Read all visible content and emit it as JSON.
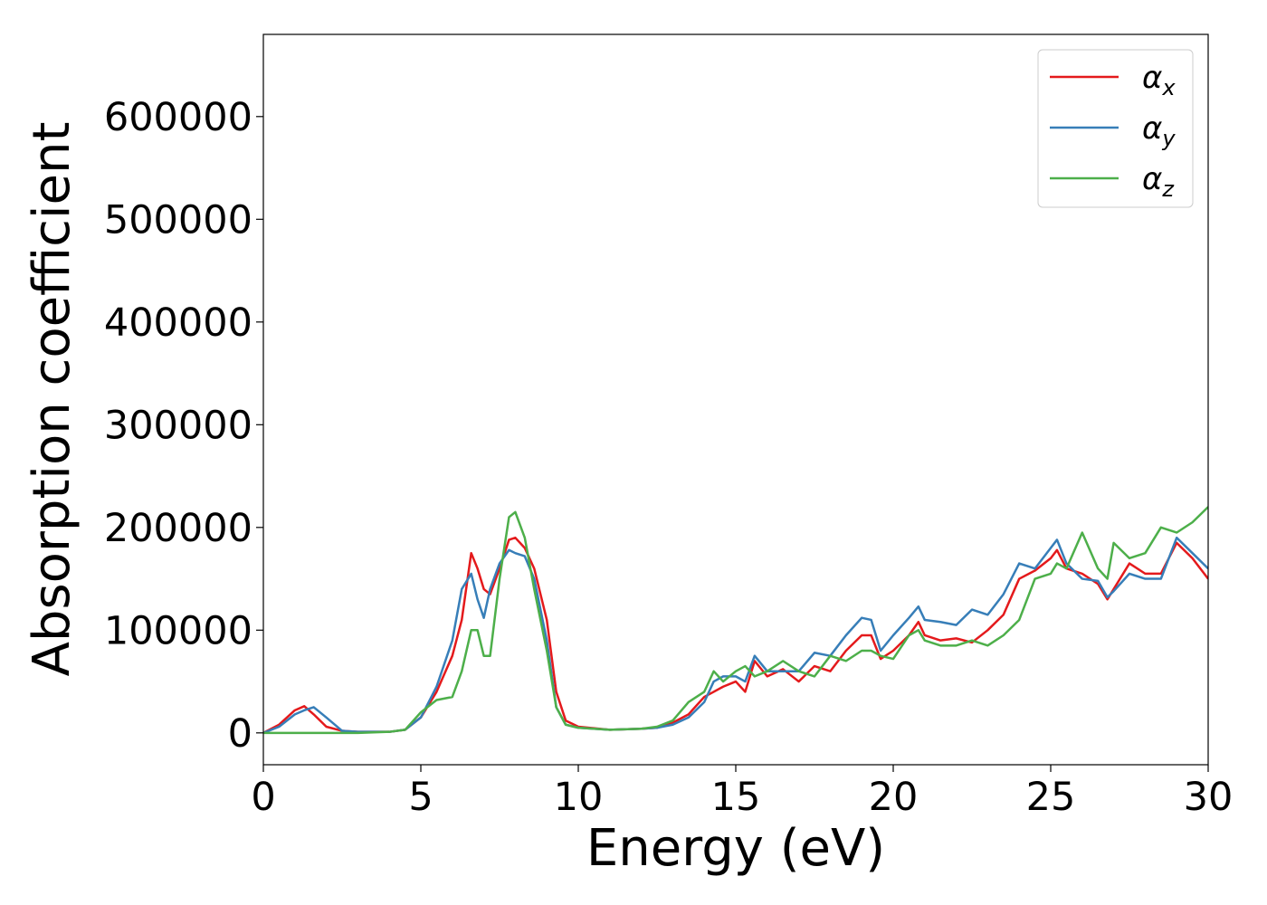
{
  "chart_data": {
    "type": "line",
    "xlabel": "Energy (eV)",
    "ylabel": "Absorption coefficient",
    "x": [
      0,
      0.5,
      1,
      1.3,
      1.6,
      2,
      2.5,
      3,
      4,
      4.5,
      5,
      5.5,
      6,
      6.3,
      6.6,
      6.8,
      7,
      7.2,
      7.5,
      7.8,
      8,
      8.3,
      8.6,
      9,
      9.3,
      9.6,
      10,
      11,
      12,
      12.5,
      13,
      13.5,
      14,
      14.3,
      14.6,
      15,
      15.3,
      15.6,
      16,
      16.5,
      17,
      17.5,
      18,
      18.5,
      19,
      19.3,
      19.6,
      20,
      20.5,
      20.8,
      21,
      21.5,
      22,
      22.5,
      23,
      23.5,
      24,
      24.5,
      25,
      25.2,
      25.5,
      26,
      26.5,
      26.8,
      27,
      27.5,
      28,
      28.5,
      29,
      29.5,
      30
    ],
    "series": [
      {
        "name": "αx",
        "color": "#e41a1c",
        "values": [
          0,
          8000,
          22000,
          26000,
          18000,
          6000,
          2000,
          1000,
          1000,
          3000,
          15000,
          40000,
          75000,
          110000,
          175000,
          160000,
          140000,
          135000,
          160000,
          188000,
          190000,
          180000,
          160000,
          110000,
          40000,
          12000,
          6000,
          3000,
          4000,
          5000,
          10000,
          18000,
          35000,
          40000,
          45000,
          50000,
          40000,
          70000,
          55000,
          62000,
          50000,
          65000,
          60000,
          80000,
          95000,
          95000,
          72000,
          80000,
          95000,
          108000,
          95000,
          90000,
          92000,
          88000,
          100000,
          115000,
          150000,
          158000,
          170000,
          178000,
          160000,
          155000,
          145000,
          130000,
          140000,
          165000,
          155000,
          155000,
          185000,
          170000,
          150000
        ]
      },
      {
        "name": "αy",
        "color": "#377eb8",
        "values": [
          0,
          6000,
          18000,
          22000,
          25000,
          15000,
          2000,
          1000,
          1000,
          3000,
          15000,
          45000,
          90000,
          140000,
          155000,
          130000,
          112000,
          140000,
          165000,
          178000,
          175000,
          172000,
          150000,
          90000,
          25000,
          8000,
          5000,
          3000,
          4000,
          5000,
          8000,
          15000,
          30000,
          50000,
          55000,
          55000,
          50000,
          75000,
          60000,
          60000,
          60000,
          78000,
          75000,
          95000,
          112000,
          110000,
          80000,
          95000,
          112000,
          123000,
          110000,
          108000,
          105000,
          120000,
          115000,
          135000,
          165000,
          160000,
          180000,
          188000,
          165000,
          150000,
          148000,
          132000,
          138000,
          155000,
          150000,
          150000,
          190000,
          175000,
          160000
        ]
      },
      {
        "name": "αz",
        "color": "#4daf4a",
        "values": [
          0,
          0,
          0,
          0,
          0,
          0,
          0,
          0,
          1000,
          3000,
          20000,
          32000,
          35000,
          60000,
          100000,
          100000,
          75000,
          75000,
          150000,
          210000,
          215000,
          190000,
          140000,
          80000,
          25000,
          8000,
          5000,
          3000,
          4000,
          6000,
          12000,
          30000,
          40000,
          60000,
          50000,
          60000,
          65000,
          55000,
          60000,
          70000,
          60000,
          55000,
          75000,
          70000,
          80000,
          80000,
          75000,
          72000,
          95000,
          100000,
          90000,
          85000,
          85000,
          90000,
          85000,
          95000,
          110000,
          150000,
          155000,
          165000,
          160000,
          195000,
          160000,
          150000,
          185000,
          170000,
          175000,
          200000,
          195000,
          205000,
          220000
        ]
      }
    ],
    "xlim": [
      0,
      30
    ],
    "xticks": [
      0,
      5,
      10,
      15,
      20,
      25,
      30
    ],
    "ylim": [
      -31000,
      680000
    ],
    "yticks": [
      0,
      100000,
      200000,
      300000,
      400000,
      500000,
      600000
    ],
    "legend": "upper right"
  }
}
